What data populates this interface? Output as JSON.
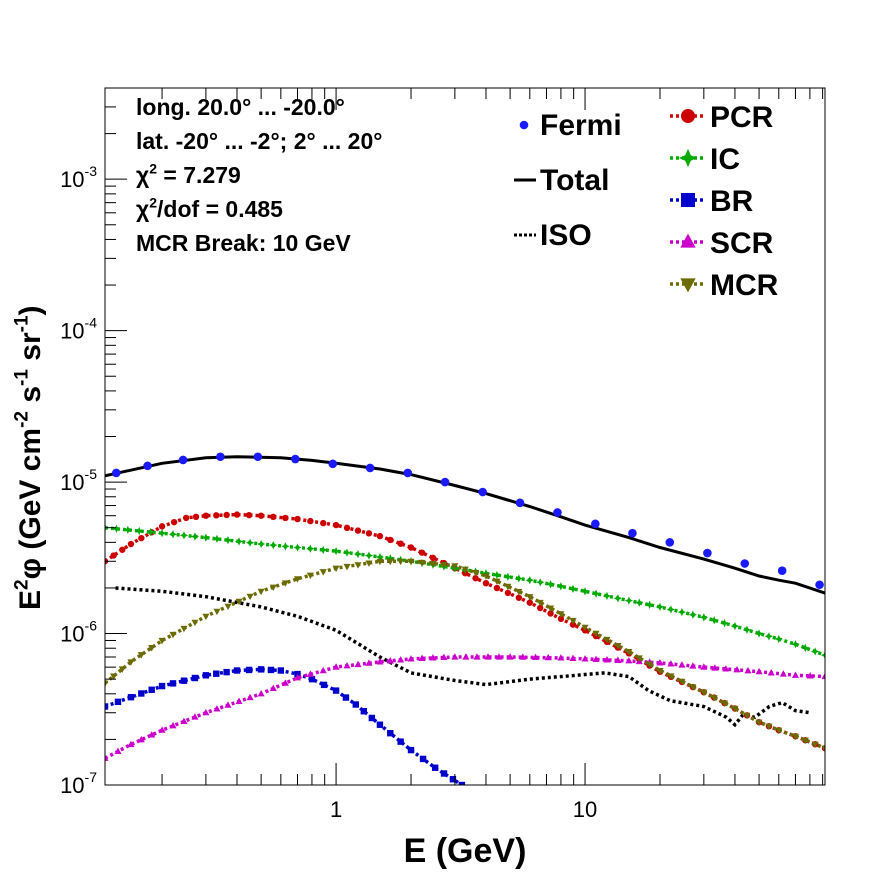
{
  "chart_data": {
    "type": "line",
    "xlabel": "E (GeV)",
    "ylabel": "E",
    "ylabel_parts": [
      "E",
      "2",
      "φ (GeV cm",
      "-2",
      " s",
      "-1",
      " sr",
      "-1",
      ")"
    ],
    "x_scale": "log",
    "y_scale": "log",
    "xlim": [
      0.118,
      92
    ],
    "ylim": [
      1e-07,
      0.004
    ],
    "x_tick_labels": [
      {
        "value": 1,
        "label": "1"
      },
      {
        "value": 10,
        "label": "10"
      }
    ],
    "y_tick_labels": [
      {
        "value": 1e-07,
        "base": "10",
        "exp": "-7"
      },
      {
        "value": 1e-06,
        "base": "10",
        "exp": "-6"
      },
      {
        "value": 1e-05,
        "base": "10",
        "exp": "-5"
      },
      {
        "value": 0.0001,
        "base": "10",
        "exp": "-4"
      },
      {
        "value": 0.001,
        "base": "10",
        "exp": "-3"
      }
    ],
    "annotations": [
      {
        "parts": [
          "long. 20.0° ... -20.0°"
        ]
      },
      {
        "parts": [
          "lat. -20° ... -2°; 2° ... 20°"
        ]
      },
      {
        "parts": [
          "χ",
          "2",
          " = 7.279"
        ]
      },
      {
        "parts": [
          "χ",
          "2",
          "/dof = 0.485"
        ]
      },
      {
        "parts": [
          "MCR Break: 10 GeV"
        ]
      }
    ],
    "fermi": {
      "name": "Fermi",
      "color": "#1a1aff",
      "x": [
        0.131,
        0.175,
        0.243,
        0.343,
        0.485,
        0.686,
        0.97,
        1.37,
        1.94,
        2.74,
        3.88,
        5.48,
        7.75,
        11.0,
        15.5,
        21.9,
        31.0,
        43.8,
        61.9,
        87.5
      ],
      "y": [
        1.15e-05,
        1.28e-05,
        1.4e-05,
        1.47e-05,
        1.47e-05,
        1.42e-05,
        1.32e-05,
        1.24e-05,
        1.15e-05,
        1e-05,
        8.6e-06,
        7.3e-06,
        6.3e-06,
        5.3e-06,
        4.6e-06,
        4e-06,
        3.4e-06,
        2.9e-06,
        2.6e-06,
        2.1e-06
      ]
    },
    "series": [
      {
        "name": "Total",
        "color": "#000000",
        "style": "solid",
        "marker": "none",
        "x": [
          0.118,
          0.2,
          0.3,
          0.4,
          0.6,
          0.8,
          1.0,
          1.5,
          2.0,
          3.0,
          4.0,
          6.0,
          8.0,
          10,
          15,
          20,
          30,
          40,
          50,
          60,
          70,
          92
        ],
        "y": [
          1.1e-05,
          1.33e-05,
          1.45e-05,
          1.47e-05,
          1.45e-05,
          1.39e-05,
          1.33e-05,
          1.22e-05,
          1.12e-05,
          9.5e-06,
          8.4e-06,
          6.9e-06,
          5.9e-06,
          5.2e-06,
          4.3e-06,
          3.7e-06,
          3.1e-06,
          2.7e-06,
          2.4e-06,
          2.25e-06,
          2.15e-06,
          1.85e-06
        ]
      },
      {
        "name": "ISO",
        "color": "#000000",
        "style": "dotted",
        "marker": "none",
        "x": [
          0.13,
          0.2,
          0.3,
          0.5,
          0.7,
          1.0,
          1.5,
          2.0,
          3.0,
          4.0,
          6.0,
          8.0,
          12,
          15,
          18,
          22,
          30,
          37,
          40,
          43,
          48,
          55,
          62,
          70,
          80
        ],
        "y": [
          2e-06,
          1.9e-06,
          1.75e-06,
          1.5e-06,
          1.3e-06,
          1.05e-06,
          7e-07,
          5.5e-07,
          4.9e-07,
          4.6e-07,
          5e-07,
          5.2e-07,
          5.5e-07,
          5.2e-07,
          4.2e-07,
          3.6e-07,
          3.3e-07,
          2.8e-07,
          2.5e-07,
          2.9e-07,
          2.8e-07,
          3.3e-07,
          3.5e-07,
          3.1e-07,
          3e-07
        ]
      },
      {
        "name": "PCR",
        "color": "#cc0000",
        "style": "dotted",
        "marker": "circle",
        "x": [
          0.118,
          0.15,
          0.2,
          0.25,
          0.3,
          0.4,
          0.5,
          0.7,
          1.0,
          1.5,
          2.0,
          3.0,
          4.0,
          6.0,
          8.0,
          10,
          15,
          20,
          30,
          40,
          50,
          60,
          70,
          92
        ],
        "y": [
          3e-06,
          3.9e-06,
          5.1e-06,
          5.8e-06,
          6e-06,
          6.1e-06,
          6e-06,
          5.7e-06,
          5.2e-06,
          4.4e-06,
          3.7e-06,
          2.7e-06,
          2.15e-06,
          1.6e-06,
          1.25e-06,
          1.05e-06,
          7.4e-07,
          5.6e-07,
          4.1e-07,
          3.2e-07,
          2.6e-07,
          2.3e-07,
          2.1e-07,
          1.75e-07
        ]
      },
      {
        "name": "IC",
        "color": "#00aa00",
        "style": "dotted",
        "marker": "star",
        "x": [
          0.118,
          0.2,
          0.3,
          0.5,
          0.7,
          1.0,
          1.5,
          2.0,
          3.0,
          4.0,
          6.0,
          8.0,
          10,
          15,
          20,
          30,
          40,
          50,
          60,
          70,
          92
        ],
        "y": [
          5e-06,
          4.6e-06,
          4.3e-06,
          3.9e-06,
          3.7e-06,
          3.5e-06,
          3.2e-06,
          3e-06,
          2.7e-06,
          2.5e-06,
          2.25e-06,
          2.05e-06,
          1.9e-06,
          1.65e-06,
          1.5e-06,
          1.28e-06,
          1.12e-06,
          1e-06,
          9.2e-07,
          8.5e-07,
          7.2e-07
        ]
      },
      {
        "name": "BR",
        "color": "#0000cc",
        "style": "dotted",
        "marker": "square",
        "x": [
          0.118,
          0.15,
          0.2,
          0.3,
          0.4,
          0.5,
          0.6,
          0.7,
          0.8,
          1.0,
          1.2,
          1.5,
          2.0,
          2.5,
          3.2
        ],
        "y": [
          3.3e-07,
          3.8e-07,
          4.5e-07,
          5.3e-07,
          5.7e-07,
          5.8e-07,
          5.7e-07,
          5.4e-07,
          5e-07,
          4.2e-07,
          3.4e-07,
          2.5e-07,
          1.7e-07,
          1.3e-07,
          1e-07
        ]
      },
      {
        "name": "SCR",
        "color": "#cc00cc",
        "style": "dotted",
        "marker": "triangle",
        "x": [
          0.118,
          0.15,
          0.2,
          0.3,
          0.5,
          0.7,
          1.0,
          1.5,
          2.0,
          3.0,
          5.0,
          8.0,
          10,
          15,
          20,
          30,
          50,
          70,
          92
        ],
        "y": [
          1.5e-07,
          1.85e-07,
          2.3e-07,
          3e-07,
          4e-07,
          5.1e-07,
          6e-07,
          6.5e-07,
          6.8e-07,
          7e-07,
          7e-07,
          6.9e-07,
          6.8e-07,
          6.6e-07,
          6.4e-07,
          6e-07,
          5.6e-07,
          5.3e-07,
          5.2e-07
        ]
      },
      {
        "name": "MCR",
        "color": "#6b6b00",
        "style": "dotted",
        "marker": "triangle-down",
        "x": [
          0.118,
          0.15,
          0.2,
          0.3,
          0.5,
          0.7,
          1.0,
          1.5,
          2.0,
          3.0,
          4.0,
          6.0,
          8.0,
          10,
          15,
          20,
          30,
          40,
          50,
          60,
          70,
          92
        ],
        "y": [
          4.7e-07,
          6.5e-07,
          9e-07,
          1.3e-06,
          1.9e-06,
          2.3e-06,
          2.7e-06,
          3e-06,
          3e-06,
          2.8e-06,
          2.4e-06,
          1.75e-06,
          1.35e-06,
          1.1e-06,
          7.6e-07,
          5.7e-07,
          4.1e-07,
          3.2e-07,
          2.6e-07,
          2.3e-07,
          2.1e-07,
          1.75e-07
        ]
      }
    ],
    "legend_left": [
      {
        "label": "Fermi",
        "ref": "fermi"
      },
      {
        "label": "Total",
        "ref": "Total"
      },
      {
        "label": "ISO",
        "ref": "ISO"
      }
    ],
    "legend_right": [
      {
        "label": "PCR",
        "ref": "PCR"
      },
      {
        "label": "IC",
        "ref": "IC"
      },
      {
        "label": "BR",
        "ref": "BR"
      },
      {
        "label": "SCR",
        "ref": "SCR"
      },
      {
        "label": "MCR",
        "ref": "MCR"
      }
    ],
    "legend_position": "top-right",
    "grid": false
  }
}
